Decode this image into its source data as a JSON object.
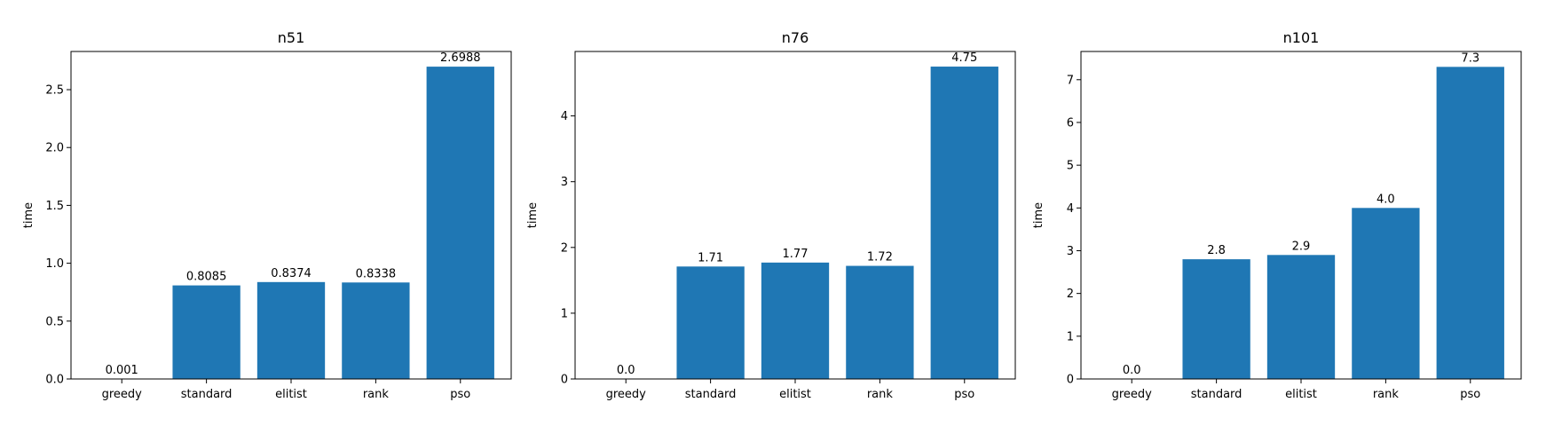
{
  "chart_data": [
    {
      "type": "bar",
      "title": "n51",
      "xlabel": "",
      "ylabel": "time",
      "categories": [
        "greedy",
        "standard",
        "elitist",
        "rank",
        "pso"
      ],
      "values": [
        0.001,
        0.8085,
        0.8374,
        0.8338,
        2.6988
      ],
      "value_labels": [
        "0.001",
        "0.8085",
        "0.8374",
        "0.8338",
        "2.6988"
      ],
      "ylim": [
        0,
        2.83
      ],
      "yticks": [
        0.0,
        0.5,
        1.0,
        1.5,
        2.0,
        2.5
      ],
      "ytick_labels": [
        "0.0",
        "0.5",
        "1.0",
        "1.5",
        "2.0",
        "2.5"
      ],
      "color": "#1f77b4",
      "grid": false
    },
    {
      "type": "bar",
      "title": "n76",
      "xlabel": "",
      "ylabel": "time",
      "categories": [
        "greedy",
        "standard",
        "elitist",
        "rank",
        "pso"
      ],
      "values": [
        0.0,
        1.71,
        1.77,
        1.72,
        4.75
      ],
      "value_labels": [
        "0.0",
        "1.71",
        "1.77",
        "1.72",
        "4.75"
      ],
      "ylim": [
        0,
        4.98
      ],
      "yticks": [
        0,
        1,
        2,
        3,
        4
      ],
      "ytick_labels": [
        "0",
        "1",
        "2",
        "3",
        "4"
      ],
      "color": "#1f77b4",
      "grid": false
    },
    {
      "type": "bar",
      "title": "n101",
      "xlabel": "",
      "ylabel": "time",
      "categories": [
        "greedy",
        "standard",
        "elitist",
        "rank",
        "pso"
      ],
      "values": [
        0.0,
        2.8,
        2.9,
        4.0,
        7.3
      ],
      "value_labels": [
        "0.0",
        "2.8",
        "2.9",
        "4.0",
        "7.3"
      ],
      "ylim": [
        0,
        7.66
      ],
      "yticks": [
        0,
        1,
        2,
        3,
        4,
        5,
        6,
        7
      ],
      "ytick_labels": [
        "0",
        "1",
        "2",
        "3",
        "4",
        "5",
        "6",
        "7"
      ],
      "color": "#1f77b4",
      "grid": false
    }
  ]
}
